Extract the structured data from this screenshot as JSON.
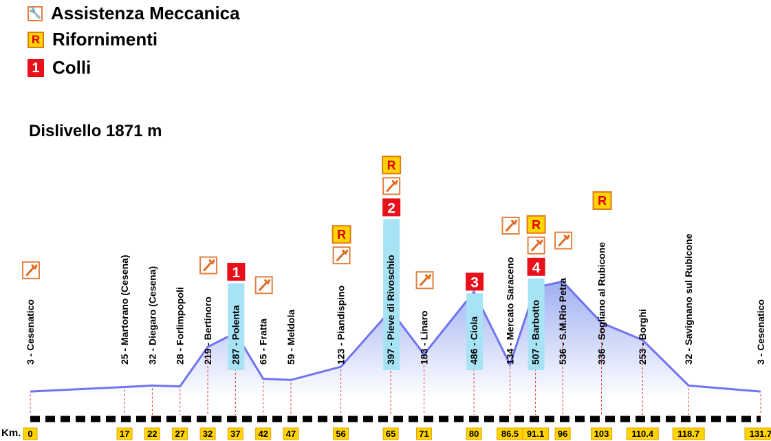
{
  "legend": [
    {
      "icon": "wrench-icon",
      "label": "Assistenza Meccanica"
    },
    {
      "icon": "refuel-icon",
      "label": "Rifornimenti",
      "symbol": "R"
    },
    {
      "icon": "climb-icon",
      "label": "Colli",
      "symbol": "1"
    }
  ],
  "dislivello": "Dislivello 1871 m",
  "km_title": "Km.",
  "colors": {
    "profile_line": "#6f73f0",
    "profile_fill_top": "#9fb0f2",
    "profile_fill_bottom": "#ffffff",
    "climb_label_bg": "#a7e3f5",
    "col_red": "#e8101a",
    "km_box": "#ffd400",
    "guide_line": "#e22a2a"
  },
  "waypoints": [
    {
      "km": "0",
      "alt": 3,
      "name": "Cesenatico",
      "label": "3  -  Cesenatico",
      "icons": [
        "wrench"
      ]
    },
    {
      "km": "17",
      "alt": 25,
      "name": "Martorano (Cesena)",
      "label": "25  -  Martorano  (Cesena)",
      "icons": []
    },
    {
      "km": "22",
      "alt": 32,
      "name": "Diegaro (Cesena)",
      "label": "32  -  Diegaro  (Cesena)",
      "icons": []
    },
    {
      "km": "27",
      "alt": 28,
      "name": "Forlimpopoli",
      "label": "28  -  Forlimpopoli",
      "icons": []
    },
    {
      "km": "32",
      "alt": 219,
      "name": "Bertinoro",
      "label": "219  -  Bertinoro",
      "icons": [
        "wrench"
      ]
    },
    {
      "km": "37",
      "alt": 287,
      "name": "Polenta",
      "label": "287  -  Polenta",
      "icons": [
        "col:1"
      ],
      "climb": true
    },
    {
      "km": "42",
      "alt": 65,
      "name": "Fratta",
      "label": "65  -  Fratta",
      "icons": [
        "wrench"
      ]
    },
    {
      "km": "47",
      "alt": 59,
      "name": "Meldola",
      "label": "59  -  Meldola",
      "icons": []
    },
    {
      "km": "56",
      "alt": 123,
      "name": "Piandispino",
      "label": "123  -  Piandispino",
      "icons": [
        "wrench",
        "R"
      ]
    },
    {
      "km": "65",
      "alt": 397,
      "name": "Pieve di Rivoschio",
      "label": "397  -  Pieve  di  Rivoschio",
      "icons": [
        "col:2",
        "wrench",
        "R"
      ],
      "climb": true
    },
    {
      "km": "71",
      "alt": 183,
      "name": "Linaro",
      "label": "183  -  Linaro",
      "icons": [
        "wrench"
      ]
    },
    {
      "km": "80",
      "alt": 486,
      "name": "Ciola",
      "label": "486  -  Ciola",
      "icons": [
        "col:3"
      ],
      "climb": true
    },
    {
      "km": "86.5",
      "alt": 134,
      "name": "Mercato Saraceno",
      "label": "134  -  Mercato  Saraceno",
      "icons": [
        "wrench"
      ]
    },
    {
      "km": "91.1",
      "alt": 507,
      "name": "Barbotto",
      "label": "507  -  Barbotto",
      "icons": [
        "col:4",
        "wrench",
        "R"
      ],
      "climb": true
    },
    {
      "km": "96",
      "alt": 536,
      "name": "S.M.Rio Petra",
      "label": "536  -  S.M.Rio  Petra",
      "icons": [
        "wrench"
      ]
    },
    {
      "km": "103",
      "alt": 336,
      "name": "Sogliano al Rubicone",
      "label": "336  -  Sogliano  al  Rubicone",
      "icons": [
        "R"
      ]
    },
    {
      "km": "110.4",
      "alt": 253,
      "name": "Borghi",
      "label": "253  -  Borghi",
      "icons": []
    },
    {
      "km": "118.7",
      "alt": 32,
      "name": "Savignano sul Rubicone",
      "label": "32  -  Savignano  sul  Rubicone",
      "icons": []
    },
    {
      "km": "131.7",
      "alt": 3,
      "name": "Cesenatico",
      "label": "3  -  Cesenatico",
      "icons": []
    }
  ]
}
